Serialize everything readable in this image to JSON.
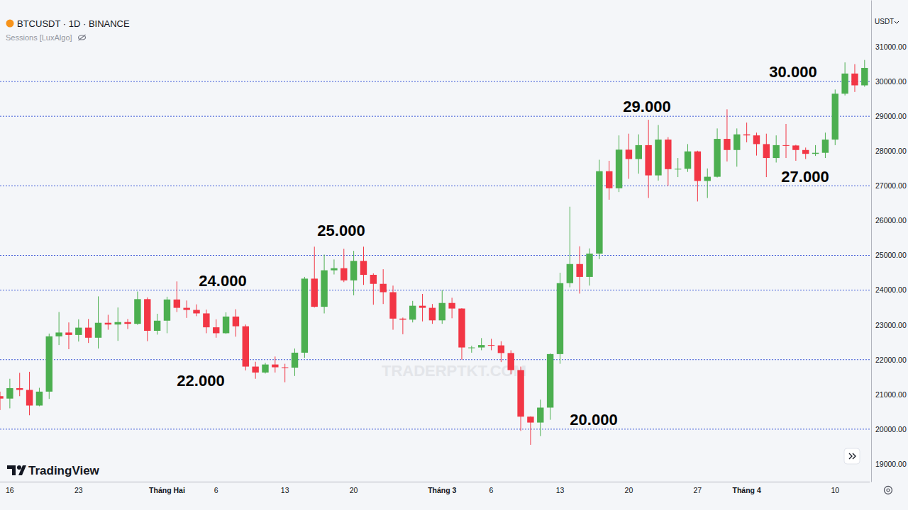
{
  "chart_data": {
    "type": "candlestick",
    "title": "BTCUSDT · 1D · BINANCE",
    "subtitle": "Sessions [LuxAlgo]",
    "y_label": "USDT",
    "brand": "TradingView",
    "watermark": "TRADERPTKT.COM",
    "categories": [
      null,
      "16",
      null,
      null,
      null,
      null,
      null,
      null,
      "23",
      null,
      null,
      null,
      null,
      null,
      null,
      null,
      null,
      "Tháng Hai",
      null,
      null,
      null,
      null,
      "6",
      null,
      null,
      null,
      null,
      null,
      null,
      "13",
      null,
      null,
      null,
      null,
      null,
      null,
      "20",
      null,
      null,
      null,
      null,
      null,
      null,
      null,
      null,
      "Tháng 3",
      null,
      null,
      null,
      null,
      "6",
      null,
      null,
      null,
      null,
      null,
      null,
      "13",
      null,
      null,
      null,
      null,
      null,
      null,
      "20",
      null,
      null,
      null,
      null,
      null,
      null,
      "27",
      null,
      null,
      null,
      null,
      "Tháng 4",
      null,
      null,
      null,
      null,
      null,
      null,
      null,
      null,
      "10",
      null,
      null,
      null
    ],
    "open": [
      20950,
      20880,
      21180,
      21130,
      20680,
      21080,
      22670,
      22780,
      22710,
      22920,
      22630,
      23060,
      23010,
      23080,
      23030,
      23740,
      22830,
      23120,
      23730,
      23490,
      23430,
      23330,
      22930,
      22760,
      23240,
      22960,
      21800,
      21630,
      21860,
      21780,
      21770,
      22200,
      24330,
      23520,
      24570,
      24630,
      24280,
      24840,
      24440,
      24180,
      23940,
      23180,
      23150,
      23550,
      23490,
      23130,
      23630,
      23470,
      22350,
      22350,
      22420,
      22410,
      22190,
      21700,
      20360,
      20190,
      20620,
      22160,
      24200,
      24750,
      24380,
      25050,
      27420,
      26930,
      28040,
      27770,
      28170,
      27300,
      28330,
      27480,
      27490,
      27990,
      27140,
      27260,
      28350,
      28030,
      28480,
      28450,
      28200,
      27800,
      28170,
      28160,
      28030,
      27920,
      27950,
      28330,
      29650,
      30230,
      29890
    ],
    "high": [
      21080,
      21450,
      21620,
      21650,
      21190,
      22750,
      23370,
      23070,
      23160,
      23170,
      23820,
      23290,
      23500,
      23170,
      23960,
      23790,
      23320,
      23810,
      24250,
      23700,
      23590,
      23440,
      23160,
      23360,
      23450,
      23010,
      21940,
      21910,
      22090,
      21880,
      22320,
      24380,
      25250,
      25020,
      24880,
      25190,
      25130,
      25250,
      24480,
      24600,
      24130,
      23210,
      23690,
      23890,
      23600,
      24000,
      23780,
      23480,
      22400,
      22620,
      22600,
      22530,
      22270,
      21800,
      20370,
      20850,
      22180,
      24500,
      26400,
      25260,
      25200,
      27750,
      27720,
      28450,
      28500,
      28480,
      28900,
      28750,
      28400,
      27800,
      28200,
      28010,
      27500,
      28650,
      29200,
      28650,
      28820,
      28530,
      28500,
      28450,
      28780,
      28180,
      28100,
      28170,
      28530,
      29770,
      30550,
      30500,
      30620
    ],
    "low": [
      20550,
      20600,
      20950,
      20400,
      20660,
      20870,
      22420,
      22300,
      22520,
      22480,
      22320,
      22860,
      22540,
      22880,
      23000,
      22530,
      22720,
      22760,
      23370,
      23200,
      23250,
      22760,
      22630,
      22740,
      22660,
      21690,
      21450,
      21600,
      21630,
      21350,
      21530,
      22050,
      23500,
      23330,
      24450,
      24230,
      23850,
      24150,
      23580,
      23600,
      22860,
      22730,
      23070,
      23100,
      23030,
      23030,
      23190,
      22000,
      22200,
      22270,
      22270,
      21930,
      21580,
      19950,
      19550,
      19800,
      20270,
      21880,
      24080,
      23900,
      24130,
      24890,
      26600,
      26820,
      27200,
      27350,
      26650,
      27150,
      27000,
      27250,
      27400,
      26550,
      26650,
      27240,
      27700,
      27550,
      28250,
      27870,
      27250,
      27670,
      27800,
      27720,
      27770,
      27860,
      27800,
      28170,
      29600,
      29700,
      29850
    ],
    "close": [
      20880,
      21180,
      21130,
      20680,
      21080,
      22670,
      22780,
      22710,
      22920,
      22630,
      23060,
      23010,
      23080,
      23030,
      23740,
      22830,
      23120,
      23730,
      23490,
      23430,
      23330,
      22930,
      22760,
      23240,
      22960,
      21800,
      21630,
      21860,
      21780,
      21770,
      22200,
      24330,
      23520,
      24570,
      24630,
      24280,
      24840,
      24440,
      24180,
      23940,
      23180,
      23150,
      23550,
      23490,
      23130,
      23630,
      23470,
      22350,
      22350,
      22420,
      22410,
      22190,
      21700,
      20360,
      20190,
      20620,
      22160,
      24200,
      24750,
      24380,
      25050,
      27420,
      26930,
      28040,
      27770,
      28170,
      27300,
      28330,
      27480,
      27490,
      27990,
      27140,
      27260,
      28350,
      28030,
      28480,
      28450,
      28200,
      27800,
      28170,
      28160,
      28030,
      27920,
      27950,
      28330,
      29650,
      30230,
      29890,
      30390
    ],
    "ylim": [
      18490,
      32345
    ],
    "yticks": [
      {
        "value": 19000,
        "label": "19000.00"
      },
      {
        "value": 20000,
        "label": "20000.00"
      },
      {
        "value": 21000,
        "label": "21000.00"
      },
      {
        "value": 22000,
        "label": "22000.00"
      },
      {
        "value": 23000,
        "label": "23000.00"
      },
      {
        "value": 24000,
        "label": "24000.00"
      },
      {
        "value": 25000,
        "label": "25000.00"
      },
      {
        "value": 26000,
        "label": "26000.00"
      },
      {
        "value": 27000,
        "label": "27000.00"
      },
      {
        "value": 28000,
        "label": "28000.00"
      },
      {
        "value": 29000,
        "label": "29000.00"
      },
      {
        "value": 30000,
        "label": "30000.00"
      },
      {
        "value": 31000,
        "label": "31000.00"
      }
    ],
    "levels": [
      {
        "value": 30000,
        "label": "30.000"
      },
      {
        "value": 29000,
        "label": "29.000"
      },
      {
        "value": 27000,
        "label": "27.000"
      },
      {
        "value": 25000,
        "label": "25.000"
      },
      {
        "value": 24000,
        "label": "24.000"
      },
      {
        "value": 22000,
        "label": "22.000"
      },
      {
        "value": 20000,
        "label": "20.000"
      }
    ],
    "grid": false
  }
}
